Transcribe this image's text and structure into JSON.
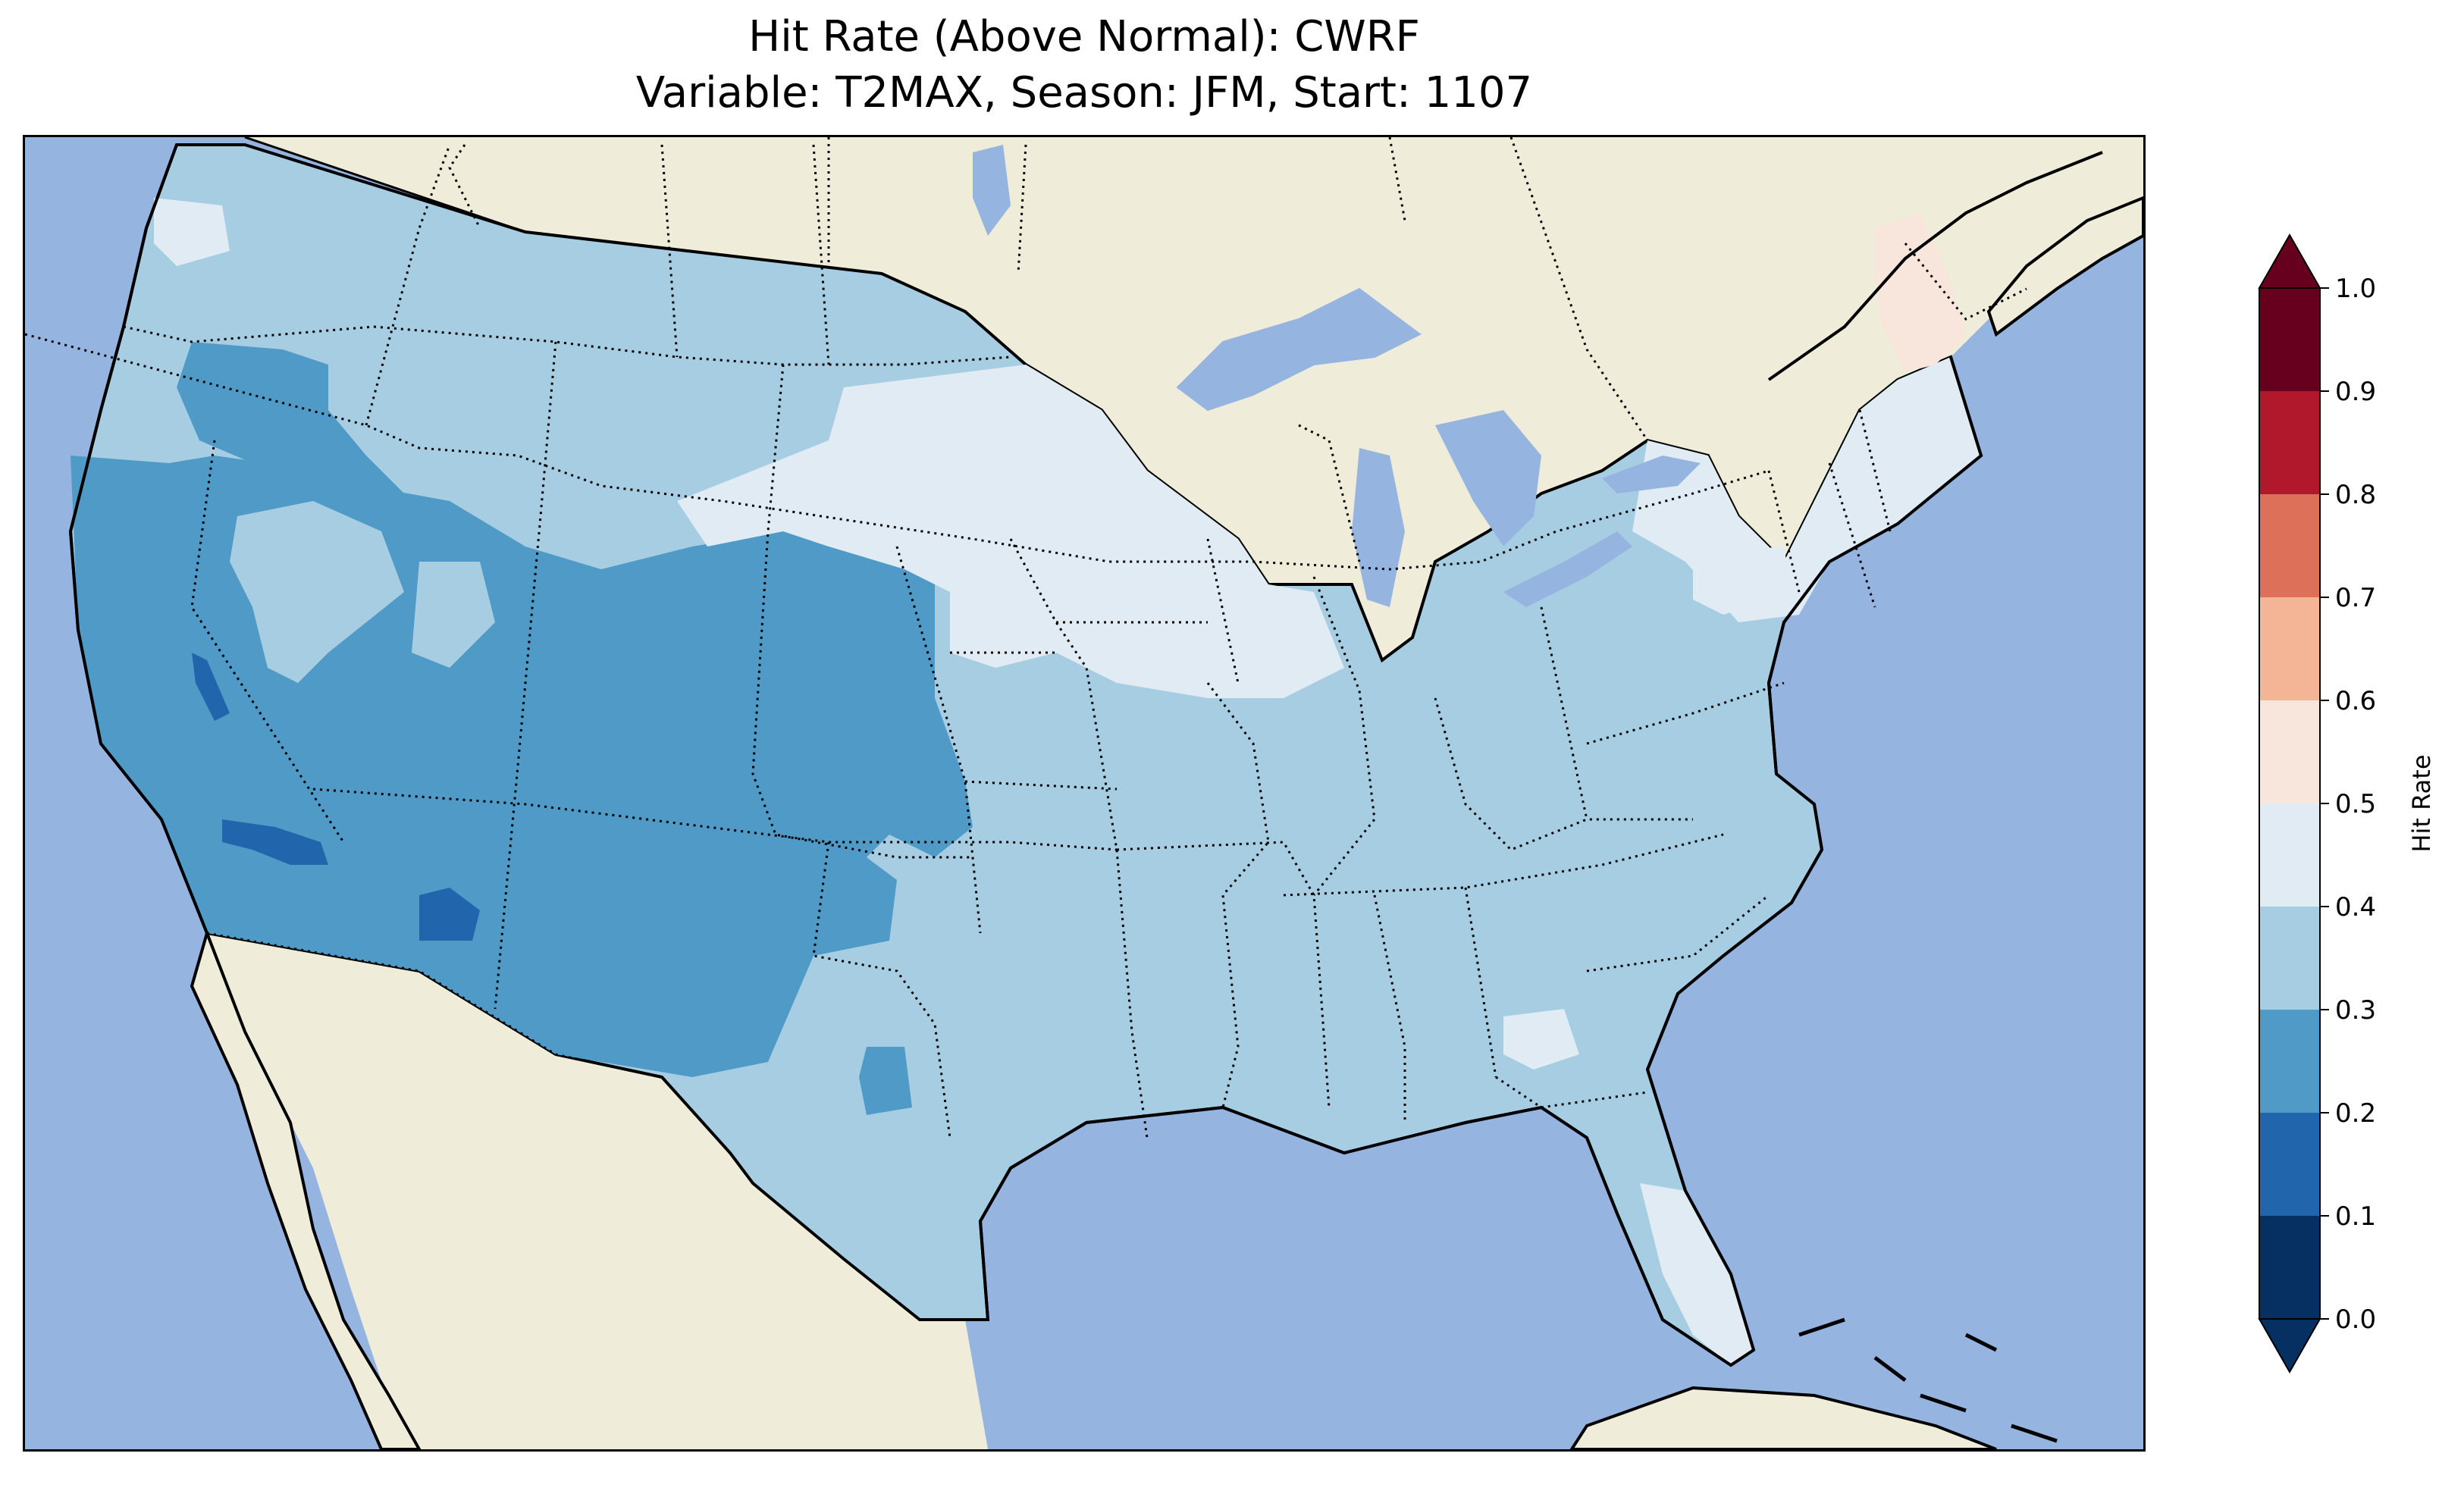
{
  "title": {
    "line1": "Hit Rate (Above Normal): CWRF",
    "line2": "Variable: T2MAX, Season: JFM, Start: 1107"
  },
  "colors": {
    "ocean": "#96b4e0",
    "land": "#efedda",
    "lakes": "#96b4e0"
  },
  "colorbar": {
    "label": "Hit Rate",
    "ticks": [
      "0.0",
      "0.1",
      "0.2",
      "0.3",
      "0.4",
      "0.5",
      "0.6",
      "0.7",
      "0.8",
      "0.9",
      "1.0"
    ],
    "under_color": "#053061",
    "over_color": "#67001f",
    "bins": [
      {
        "min": 0.0,
        "max": 0.1,
        "color": "#053061"
      },
      {
        "min": 0.1,
        "max": 0.2,
        "color": "#2166ac"
      },
      {
        "min": 0.2,
        "max": 0.3,
        "color": "#4f9ac7"
      },
      {
        "min": 0.3,
        "max": 0.4,
        "color": "#a7cde3"
      },
      {
        "min": 0.4,
        "max": 0.5,
        "color": "#e0ebf3"
      },
      {
        "min": 0.5,
        "max": 0.6,
        "color": "#f8e5dc"
      },
      {
        "min": 0.6,
        "max": 0.7,
        "color": "#f4b597"
      },
      {
        "min": 0.7,
        "max": 0.8,
        "color": "#dc7058"
      },
      {
        "min": 0.8,
        "max": 0.9,
        "color": "#b2182b"
      },
      {
        "min": 0.9,
        "max": 1.0,
        "color": "#67001f"
      }
    ]
  },
  "map_regions": [
    {
      "name": "pacific-northwest-coast",
      "bin": "0.3-0.4"
    },
    {
      "name": "northern-rockies-plains",
      "bin": "0.3-0.4"
    },
    {
      "name": "great-basin-southwest",
      "bin": "0.2-0.3"
    },
    {
      "name": "central-plains",
      "bin": "0.2-0.3"
    },
    {
      "name": "midwest-great-lakes",
      "bin": "0.4-0.5"
    },
    {
      "name": "southern-plains-southeast",
      "bin": "0.3-0.4"
    },
    {
      "name": "northeast",
      "bin": "0.4-0.5"
    },
    {
      "name": "northern-maine",
      "bin": "0.5-0.6"
    },
    {
      "name": "southwest-hotspots",
      "bin": "0.1-0.2"
    },
    {
      "name": "florida-peninsula",
      "bin": "0.4-0.5"
    }
  ]
}
